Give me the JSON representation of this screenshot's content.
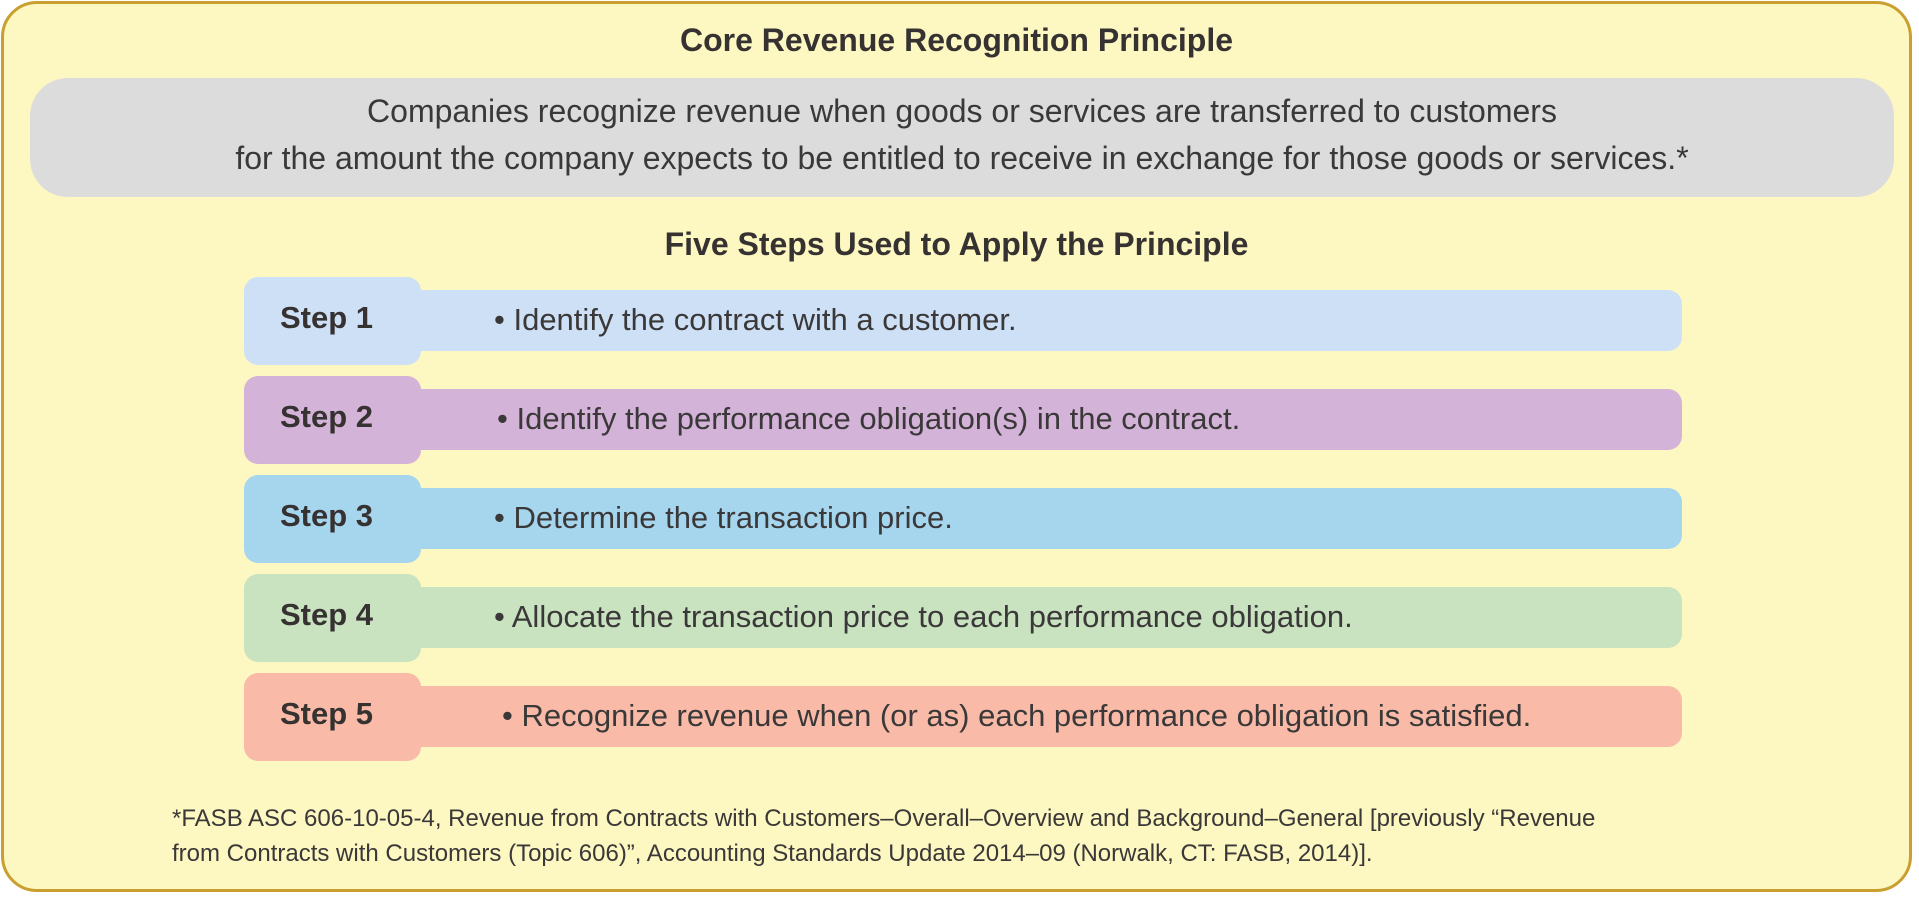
{
  "title": "Core Revenue Recognition Principle",
  "principle": {
    "line1": "Companies recognize revenue when goods or services are transferred to customers",
    "line2": "for the amount the company expects to be entitled to receive in exchange for those goods or services.*"
  },
  "steps_title": "Five Steps Used to Apply the Principle",
  "steps": [
    {
      "label": "Step 1",
      "text": "• Identify the contract with a customer.",
      "color": "#cde0f5"
    },
    {
      "label": "Step 2",
      "text": "• Identify the performance obligation(s) in the contract.",
      "color": "#d4b3d8"
    },
    {
      "label": "Step 3",
      "text": "• Determine the transaction price.",
      "color": "#a6d6ee"
    },
    {
      "label": "Step 4",
      "text": "• Allocate the transaction price to each performance obligation.",
      "color": "#c9e2c0"
    },
    {
      "label": "Step 5",
      "text": "• Recognize revenue when (or as) each performance obligation is satisfied.",
      "color": "#f9bba8"
    }
  ],
  "footnote": {
    "line1": "*FASB ASC 606-10-05-4, Revenue from Contracts with Customers–Overall–Overview and Background–General [previously “Revenue",
    "line2": "from Contracts with Customers (Topic 606)”, Accounting Standards Update 2014–09 (Norwalk, CT: FASB, 2014)]."
  },
  "colors": {
    "panel_background": "#fdf7c1",
    "panel_border": "#c9a030",
    "principle_box": "#dcdcdc"
  }
}
